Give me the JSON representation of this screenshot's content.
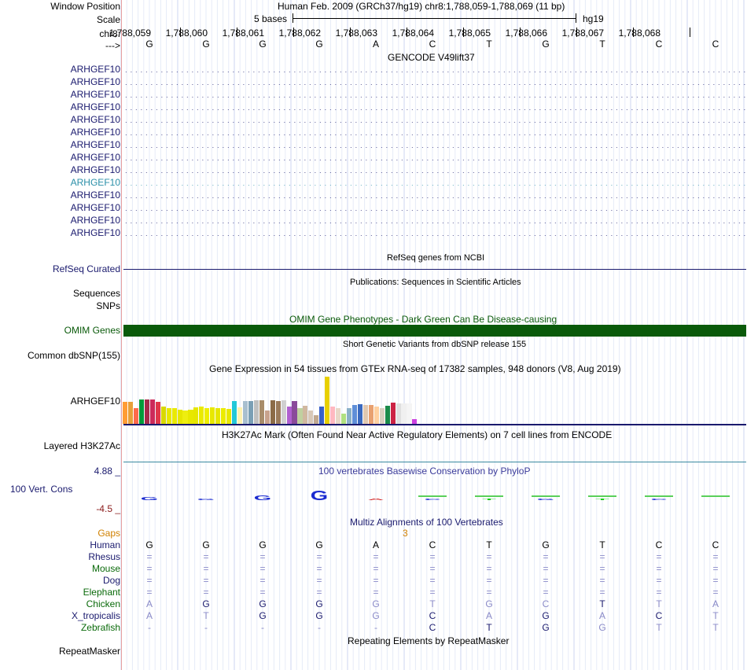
{
  "header": {
    "window_position_label": "Window Position",
    "scale_label": "Scale",
    "chr_label": "chr8:",
    "strand_label": "--->",
    "assembly_text": "Human Feb. 2009 (GRCh37/hg19)   chr8:1,788,059-1,788,069 (11 bp)",
    "scale_bases": "5 bases",
    "scale_db": "hg19",
    "coords": [
      "1,788,059",
      "1,788,060",
      "1,788,061",
      "1,788,062",
      "1,788,063",
      "1,788,064",
      "1,788,065",
      "1,788,066",
      "1,788,067",
      "1,788,068"
    ],
    "bases": [
      "G",
      "G",
      "G",
      "G",
      "A",
      "C",
      "T",
      "G",
      "T",
      "C",
      "C"
    ]
  },
  "gencode": {
    "title": "GENCODE V49lift37",
    "gene_labels": [
      "ARHGEF10",
      "ARHGEF10",
      "ARHGEF10",
      "ARHGEF10",
      "ARHGEF10",
      "ARHGEF10",
      "ARHGEF10",
      "ARHGEF10",
      "ARHGEF10",
      "ARHGEF10",
      "ARHGEF10",
      "ARHGEF10",
      "ARHGEF10",
      "ARHGEF10"
    ],
    "colors": [
      "#1a1a6e",
      "#1a1a6e",
      "#1a1a6e",
      "#1a1a6e",
      "#1a1a6e",
      "#1a1a6e",
      "#1a1a6e",
      "#1a1a6e",
      "#1a1a6e",
      "#2a8fa8",
      "#1a1a6e",
      "#1a1a6e",
      "#1a1a6e",
      "#1a1a6e"
    ]
  },
  "refseq": {
    "title": "RefSeq genes from NCBI",
    "label": "RefSeq Curated",
    "color": "#1a1a6e"
  },
  "publications": {
    "title": "Publications: Sequences in Scientific Articles",
    "label1": "Sequences",
    "label2": "SNPs"
  },
  "omim": {
    "title": "OMIM Gene Phenotypes - Dark Green Can Be Disease-causing",
    "label": "OMIM Genes",
    "color": "#0a5a0a",
    "label_color": "#0a5a0a"
  },
  "dbsnp": {
    "title": "Short Genetic Variants from dbSNP release 155",
    "label": "Common dbSNP(155)"
  },
  "gtex": {
    "title": "Gene Expression in 54 tissues from GTEx RNA-seq of 17382 samples, 948 donors (V8, Aug 2019)",
    "label": "ARHGEF10",
    "values": [
      0.47,
      0.46,
      0.34,
      0.52,
      0.51,
      0.51,
      0.47,
      0.36,
      0.33,
      0.33,
      0.3,
      0.28,
      0.3,
      0.35,
      0.36,
      0.34,
      0.35,
      0.34,
      0.33,
      0.32,
      0.48,
      0.35,
      0.49,
      0.48,
      0.5,
      0.5,
      0.28,
      0.5,
      0.49,
      0.5,
      0.36,
      0.48,
      0.33,
      0.38,
      0.28,
      0.18,
      0.37,
      1.0,
      0.36,
      0.33,
      0.22,
      0.33,
      0.4,
      0.41,
      0.4,
      0.4,
      0.37,
      0.33,
      0.38,
      0.45,
      0.44,
      0.44,
      0.44,
      0.1
    ],
    "colors": [
      "#ff9d35",
      "#e8a03a",
      "#ff6a4a",
      "#009b3a",
      "#a52a4a",
      "#cc2a5a",
      "#e0364a",
      "#d9d900",
      "#e8e800",
      "#eaea00",
      "#e6e600",
      "#eeee10",
      "#e8e800",
      "#e6e600",
      "#eaea00",
      "#eeee00",
      "#e8e800",
      "#e6e600",
      "#ecec00",
      "#e8e800",
      "#23c8d8",
      "#fff2b0",
      "#a8bfcf",
      "#7a9fb5",
      "#c0c0c0",
      "#a88c6a",
      "#c8a28c",
      "#8b6b47",
      "#9a7a5a",
      "#d0d0d0",
      "#b060d0",
      "#8a4a9a",
      "#c0d0a0",
      "#d0b8a0",
      "#d8c8b8",
      "#c0a890",
      "#3860c8",
      "#e8d000",
      "#ffb8c0",
      "#e8d8c8",
      "#b0e080",
      "#8ab0c8",
      "#5f8fd8",
      "#3a6ac0",
      "#e0c8b0",
      "#e8a070",
      "#ffd0a0",
      "#d8d0c0",
      "#1a8a4a",
      "#cc2244",
      "#e0e0e0",
      "#f0f0f0",
      "#f5f5f5",
      "#cc40e0"
    ]
  },
  "h3k27ac": {
    "title": "H3K27Ac Mark (Often Found Near Active Regulatory Elements) on 7 cell lines from ENCODE",
    "label": "Layered H3K27Ac"
  },
  "phylop": {
    "title": "100 vertebrates Basewise Conservation by PhyloP",
    "label": "100 Vert. Cons",
    "max_label": "4.88 _",
    "min_label": "-4.5 _",
    "title_color": "#3a3a9a"
  },
  "multiz": {
    "title": "Multiz Alignments of 100 Vertebrates",
    "gaps_label": "Gaps",
    "gaps_value": "3",
    "gaps_color": "#d08000",
    "species": [
      {
        "name": "Human",
        "color": "#1a1a6e",
        "seq": [
          "G",
          "G",
          "G",
          "G",
          "A",
          "C",
          "T",
          "G",
          "T",
          "C",
          "C"
        ],
        "light": [
          false,
          false,
          false,
          false,
          false,
          false,
          false,
          false,
          false,
          false,
          false
        ]
      },
      {
        "name": "Rhesus",
        "color": "#1a1a6e",
        "seq": [
          "=",
          "=",
          "=",
          "=",
          "=",
          "=",
          "=",
          "=",
          "=",
          "=",
          "="
        ],
        "light": [
          true,
          true,
          true,
          true,
          true,
          true,
          true,
          true,
          true,
          true,
          true
        ]
      },
      {
        "name": "Mouse",
        "color": "#0a6a0a",
        "seq": [
          "=",
          "=",
          "=",
          "=",
          "=",
          "=",
          "=",
          "=",
          "=",
          "=",
          "="
        ],
        "light": [
          true,
          true,
          true,
          true,
          true,
          true,
          true,
          true,
          true,
          true,
          true
        ]
      },
      {
        "name": "Dog",
        "color": "#1a1a6e",
        "seq": [
          "=",
          "=",
          "=",
          "=",
          "=",
          "=",
          "=",
          "=",
          "=",
          "=",
          "="
        ],
        "light": [
          true,
          true,
          true,
          true,
          true,
          true,
          true,
          true,
          true,
          true,
          true
        ]
      },
      {
        "name": "Elephant",
        "color": "#0a6a0a",
        "seq": [
          "=",
          "=",
          "=",
          "=",
          "=",
          "=",
          "=",
          "=",
          "=",
          "=",
          "="
        ],
        "light": [
          true,
          true,
          true,
          true,
          true,
          true,
          true,
          true,
          true,
          true,
          true
        ]
      },
      {
        "name": "Chicken",
        "color": "#0a6a0a",
        "seq": [
          "A",
          "G",
          "G",
          "G",
          "G",
          "T",
          "G",
          "C",
          "T",
          "T",
          "A"
        ],
        "light": [
          true,
          false,
          false,
          false,
          true,
          true,
          true,
          true,
          false,
          true,
          true
        ]
      },
      {
        "name": "X_tropicalis",
        "color": "#1a1a6e",
        "seq": [
          "A",
          "T",
          "G",
          "G",
          "G",
          "C",
          "A",
          "G",
          "A",
          "C",
          "T"
        ],
        "light": [
          true,
          true,
          false,
          false,
          true,
          false,
          true,
          false,
          true,
          false,
          true
        ]
      },
      {
        "name": "Zebrafish",
        "color": "#0a6a0a",
        "seq": [
          "-",
          "-",
          "-",
          "-",
          "-",
          "C",
          "T",
          "G",
          "G",
          "T",
          "T"
        ],
        "light": [
          true,
          true,
          true,
          true,
          true,
          false,
          false,
          false,
          true,
          true,
          true
        ]
      }
    ]
  },
  "repeatmasker": {
    "title": "Repeating Elements by RepeatMasker",
    "label": "RepeatMasker"
  }
}
